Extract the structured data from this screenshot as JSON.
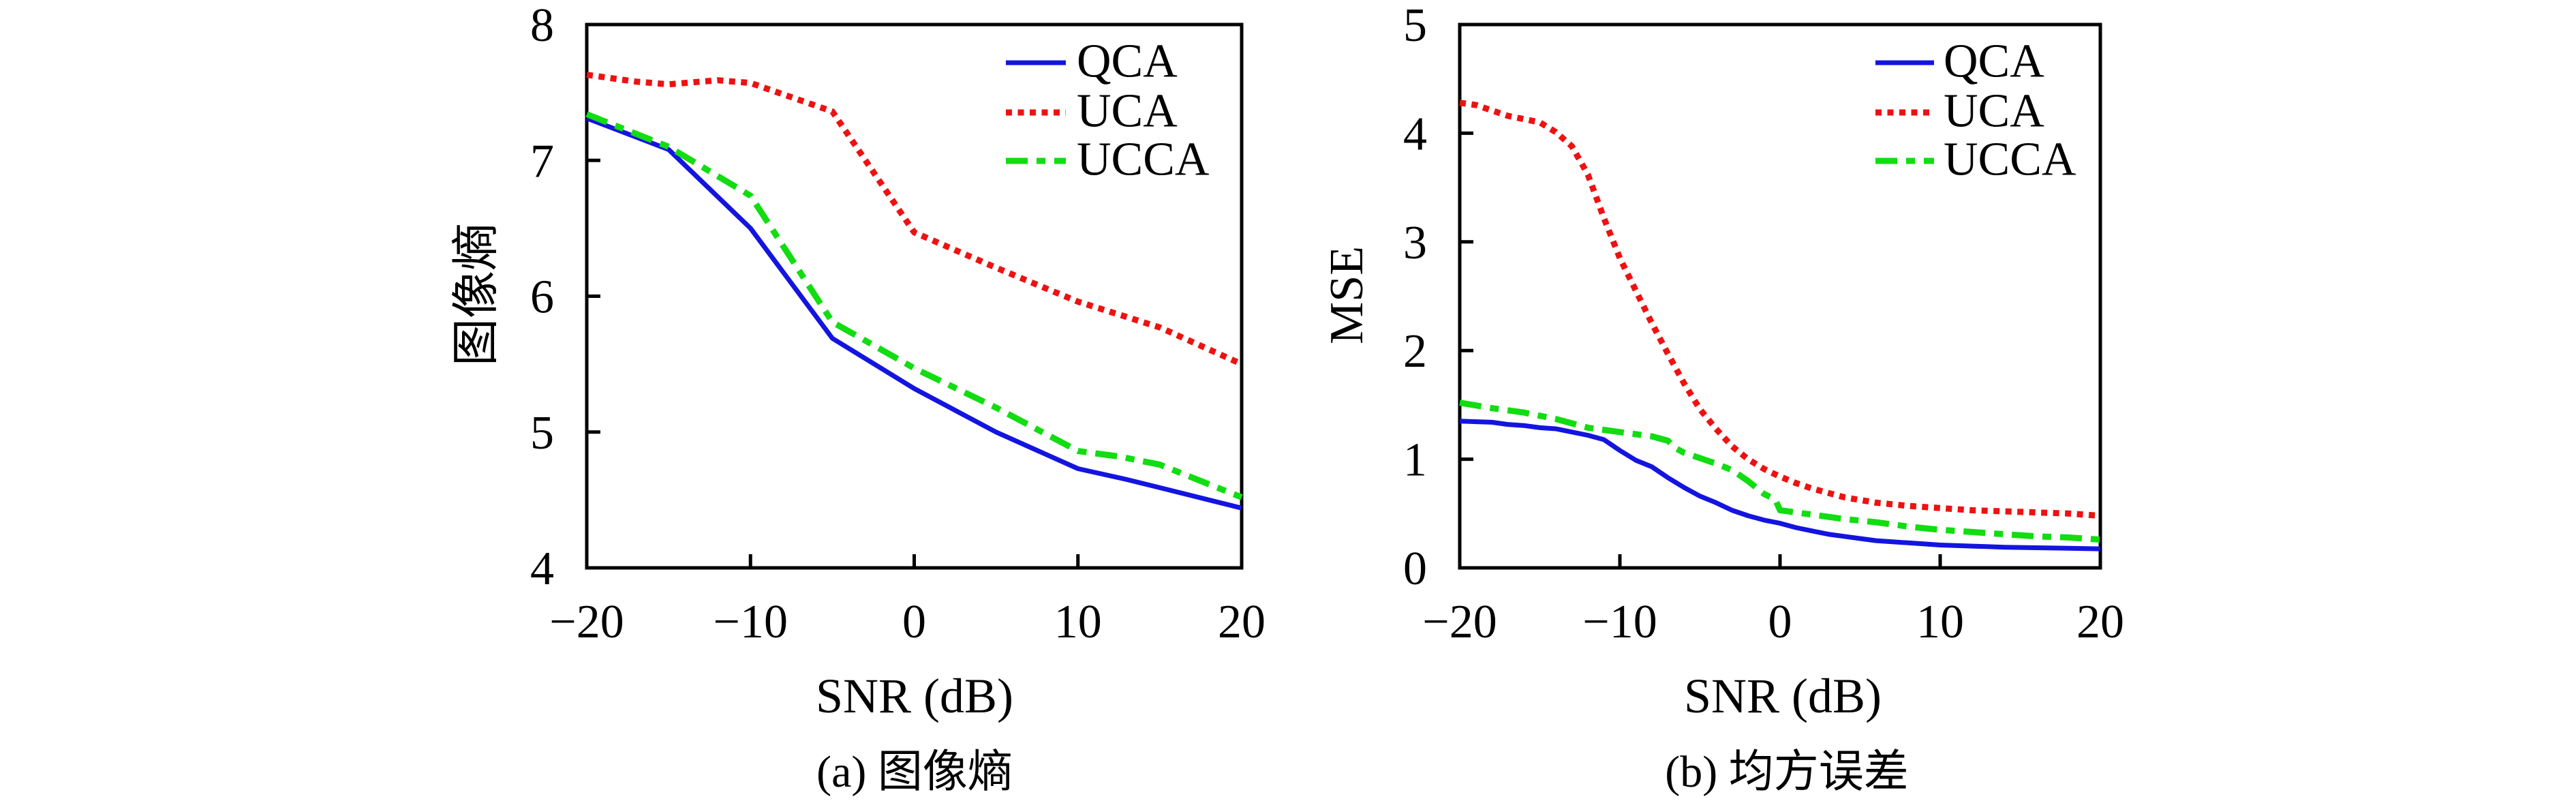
{
  "page": {
    "background": "#ffffff",
    "axis_color": "#000000",
    "text_color": "#000000"
  },
  "chart_data": [
    {
      "type": "line",
      "caption": "(a) 图像熵",
      "xlabel": "SNR (dB)",
      "ylabel": "图像熵",
      "xlim": [
        -20,
        20
      ],
      "ylim": [
        4,
        8
      ],
      "xticks": [
        -20,
        -10,
        0,
        10,
        20
      ],
      "yticks": [
        4,
        5,
        6,
        7,
        8
      ],
      "grid": false,
      "legend_position": "top-right-inside",
      "series": [
        {
          "name": "QCA",
          "color": "#1414e0",
          "style": "solid",
          "x": [
            -20,
            -15,
            -10,
            -5,
            0,
            5,
            10,
            13,
            15,
            20
          ],
          "y": [
            7.31,
            7.08,
            6.5,
            5.69,
            5.32,
            5.0,
            4.73,
            4.65,
            4.59,
            4.44
          ]
        },
        {
          "name": "UCA",
          "color": "#ee1111",
          "style": "dotted",
          "x": [
            -20,
            -17,
            -15,
            -12,
            -10,
            -5,
            0,
            5,
            10,
            15,
            20
          ],
          "y": [
            7.63,
            7.58,
            7.56,
            7.59,
            7.57,
            7.36,
            6.47,
            6.21,
            5.96,
            5.77,
            5.5
          ]
        },
        {
          "name": "UCCA",
          "color": "#11dd11",
          "style": "dashdot",
          "x": [
            -20,
            -15,
            -10,
            -5,
            0,
            5,
            10,
            12.5,
            15,
            20
          ],
          "y": [
            7.34,
            7.1,
            6.74,
            5.81,
            5.47,
            5.18,
            4.86,
            4.82,
            4.76,
            4.52
          ]
        }
      ]
    },
    {
      "type": "line",
      "caption": "(b) 均方误差",
      "xlabel": "SNR (dB)",
      "ylabel": "MSE",
      "xlim": [
        -20,
        20
      ],
      "ylim": [
        0,
        5
      ],
      "xticks": [
        -20,
        -10,
        0,
        10,
        20
      ],
      "yticks": [
        0,
        1,
        2,
        3,
        4,
        5
      ],
      "grid": false,
      "legend_position": "top-right-inside",
      "series": [
        {
          "name": "QCA",
          "color": "#1414e0",
          "style": "solid",
          "x": [
            -20,
            -18,
            -17,
            -16,
            -15,
            -14,
            -12,
            -11,
            -10,
            -9,
            -8,
            -7,
            -6,
            -5,
            -4,
            -3,
            -2,
            -1,
            0,
            1,
            2,
            3,
            4,
            5,
            6,
            8,
            10,
            12,
            14,
            16,
            18,
            20
          ],
          "y": [
            1.35,
            1.34,
            1.32,
            1.31,
            1.29,
            1.28,
            1.22,
            1.18,
            1.08,
            0.99,
            0.93,
            0.83,
            0.74,
            0.66,
            0.6,
            0.53,
            0.48,
            0.44,
            0.41,
            0.37,
            0.34,
            0.31,
            0.29,
            0.27,
            0.25,
            0.23,
            0.21,
            0.2,
            0.19,
            0.185,
            0.18,
            0.175
          ]
        },
        {
          "name": "UCA",
          "color": "#ee1111",
          "style": "dotted",
          "x": [
            -20,
            -19,
            -18,
            -17,
            -16,
            -15,
            -14,
            -13,
            -12,
            -11,
            -10,
            -9,
            -8,
            -7,
            -6,
            -5,
            -4,
            -3,
            -2,
            -1,
            0,
            1,
            2,
            4,
            6,
            8,
            10,
            12,
            14,
            16,
            18,
            20
          ],
          "y": [
            4.28,
            4.26,
            4.21,
            4.16,
            4.13,
            4.1,
            4.01,
            3.88,
            3.62,
            3.22,
            2.85,
            2.55,
            2.25,
            1.97,
            1.7,
            1.46,
            1.28,
            1.12,
            1.0,
            0.91,
            0.84,
            0.78,
            0.73,
            0.65,
            0.6,
            0.57,
            0.55,
            0.53,
            0.52,
            0.51,
            0.5,
            0.48
          ]
        },
        {
          "name": "UCCA",
          "color": "#11dd11",
          "style": "dashdot",
          "x": [
            -20,
            -18,
            -16,
            -14,
            -12,
            -10,
            -9,
            -8,
            -7,
            -6.5,
            -6,
            -5,
            -4,
            -3,
            -2,
            -1,
            -0.3,
            0,
            1,
            2,
            4,
            6,
            8,
            10,
            12,
            14,
            16,
            18,
            20
          ],
          "y": [
            1.52,
            1.47,
            1.43,
            1.37,
            1.29,
            1.25,
            1.23,
            1.21,
            1.17,
            1.1,
            1.06,
            1.01,
            0.96,
            0.9,
            0.8,
            0.68,
            0.63,
            0.53,
            0.51,
            0.49,
            0.45,
            0.42,
            0.38,
            0.35,
            0.33,
            0.31,
            0.29,
            0.28,
            0.26
          ]
        }
      ]
    }
  ]
}
